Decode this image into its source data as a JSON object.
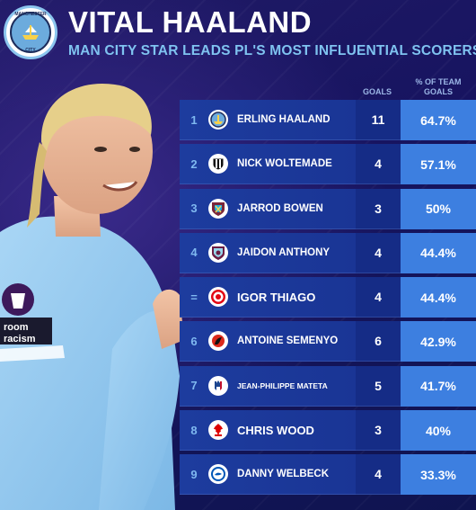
{
  "header": {
    "title": "VITAL HAALAND",
    "subtitle": "MAN CITY STAR LEADS PL'S MOST INFLUENTIAL SCORERS",
    "crest_top": "MANCHESTER",
    "crest_bottom": "CITY"
  },
  "table": {
    "col_goals": "GOALS",
    "col_pct": "% OF TEAM GOALS",
    "rows": [
      {
        "rank": "1",
        "name": "ERLING HAALAND",
        "goals": "11",
        "pct": "64.7%",
        "club": "man-city-icon",
        "color": "#6cabdd"
      },
      {
        "rank": "2",
        "name": "NICK WOLTEMADE",
        "goals": "4",
        "pct": "57.1%",
        "club": "newcastle-icon",
        "color": "#222222"
      },
      {
        "rank": "3",
        "name": "JARROD BOWEN",
        "goals": "3",
        "pct": "50%",
        "club": "west-ham-icon",
        "color": "#7a263a"
      },
      {
        "rank": "4",
        "name": "JAIDON ANTHONY",
        "goals": "4",
        "pct": "44.4%",
        "club": "burnley-icon",
        "color": "#6c1d45"
      },
      {
        "rank": "=",
        "name": "IGOR THIAGO",
        "goals": "4",
        "pct": "44.4%",
        "club": "brentford-icon",
        "color": "#e30613"
      },
      {
        "rank": "6",
        "name": "ANTOINE SEMENYO",
        "goals": "6",
        "pct": "42.9%",
        "club": "bournemouth-icon",
        "color": "#da291c"
      },
      {
        "rank": "7",
        "name": "JEAN-PHILIPPE MATETA",
        "goals": "5",
        "pct": "41.7%",
        "club": "crystal-palace-icon",
        "color": "#1b458f"
      },
      {
        "rank": "8",
        "name": "CHRIS WOOD",
        "goals": "3",
        "pct": "40%",
        "club": "nottingham-forest-icon",
        "color": "#dd0000"
      },
      {
        "rank": "9",
        "name": "DANNY WELBECK",
        "goals": "4",
        "pct": "33.3%",
        "club": "brighton-icon",
        "color": "#0057b8"
      }
    ]
  },
  "player": {
    "sleeve_text_1": "room",
    "sleeve_text_2": "racism"
  }
}
